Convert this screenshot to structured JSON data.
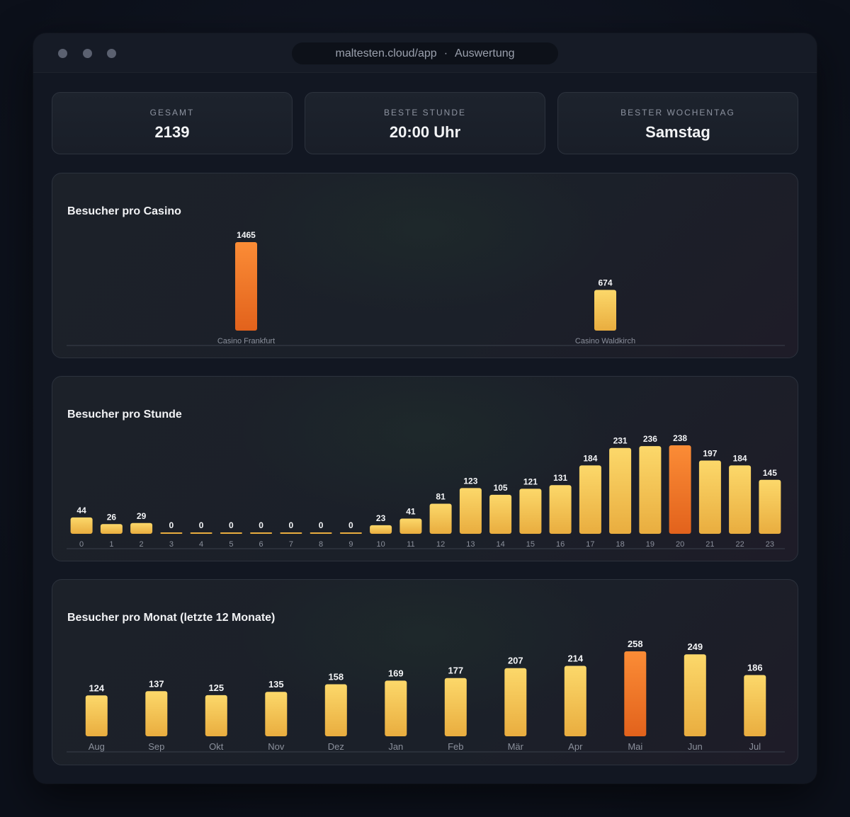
{
  "window": {
    "url": "maltesten.cloud/app",
    "separator": "·",
    "page": "Auswertung"
  },
  "stats": [
    {
      "label": "GESAMT",
      "value": "2139"
    },
    {
      "label": "BESTE STUNDE",
      "value": "20:00 Uhr"
    },
    {
      "label": "BESTER WOCHENTAG",
      "value": "Samstag"
    }
  ],
  "colors": {
    "bar_top": "#fcd86a",
    "bar_bottom": "#e9ad3f",
    "highlight_top": "#fb8c36",
    "highlight_bottom": "#e2621c"
  },
  "chart_data": [
    {
      "type": "bar",
      "title": "Besucher pro Casino",
      "categories": [
        "Casino Frankfurt",
        "Casino Waldkirch"
      ],
      "values": [
        1465,
        674
      ],
      "highlight_index": 0,
      "ylim": [
        0,
        1465
      ]
    },
    {
      "type": "bar",
      "title": "Besucher pro Stunde",
      "categories": [
        "0",
        "1",
        "2",
        "3",
        "4",
        "5",
        "6",
        "7",
        "8",
        "9",
        "10",
        "11",
        "12",
        "13",
        "14",
        "15",
        "16",
        "17",
        "18",
        "19",
        "20",
        "21",
        "22",
        "23"
      ],
      "values": [
        44,
        26,
        29,
        0,
        0,
        0,
        0,
        0,
        0,
        0,
        23,
        41,
        81,
        123,
        105,
        121,
        131,
        184,
        231,
        236,
        238,
        197,
        184,
        145
      ],
      "highlight_index": 20,
      "ylim": [
        0,
        238
      ]
    },
    {
      "type": "bar",
      "title": "Besucher pro Monat (letzte 12 Monate)",
      "categories": [
        "Aug",
        "Sep",
        "Okt",
        "Nov",
        "Dez",
        "Jan",
        "Feb",
        "Mär",
        "Apr",
        "Mai",
        "Jun",
        "Jul"
      ],
      "values": [
        124,
        137,
        125,
        135,
        158,
        169,
        177,
        207,
        214,
        258,
        249,
        186
      ],
      "highlight_index": 9,
      "ylim": [
        0,
        258
      ]
    }
  ]
}
